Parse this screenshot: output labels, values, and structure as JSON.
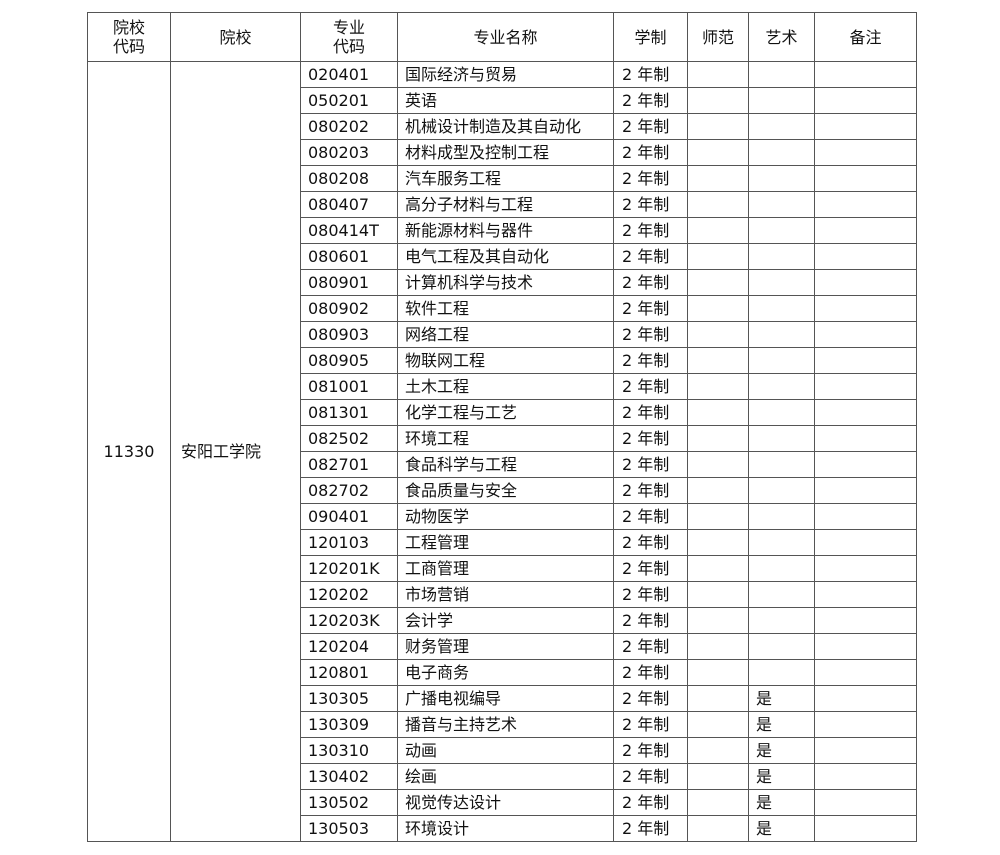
{
  "headers": [
    "院校\n代码",
    "院校",
    "专业\n代码",
    "专业名称",
    "学制",
    "师范",
    "艺术",
    "备注"
  ],
  "school_code": "11330",
  "school_name": "安阳工学院",
  "rows": [
    {
      "code": "020401",
      "name": "国际经济与贸易",
      "duration": "2 年制",
      "normal": "",
      "art": "",
      "note": ""
    },
    {
      "code": "050201",
      "name": "英语",
      "duration": "2 年制",
      "normal": "",
      "art": "",
      "note": ""
    },
    {
      "code": "080202",
      "name": "机械设计制造及其自动化",
      "duration": "2 年制",
      "normal": "",
      "art": "",
      "note": ""
    },
    {
      "code": "080203",
      "name": "材料成型及控制工程",
      "duration": "2 年制",
      "normal": "",
      "art": "",
      "note": ""
    },
    {
      "code": "080208",
      "name": "汽车服务工程",
      "duration": "2 年制",
      "normal": "",
      "art": "",
      "note": ""
    },
    {
      "code": "080407",
      "name": "高分子材料与工程",
      "duration": "2 年制",
      "normal": "",
      "art": "",
      "note": ""
    },
    {
      "code": "080414T",
      "name": "新能源材料与器件",
      "duration": "2 年制",
      "normal": "",
      "art": "",
      "note": ""
    },
    {
      "code": "080601",
      "name": "电气工程及其自动化",
      "duration": "2 年制",
      "normal": "",
      "art": "",
      "note": ""
    },
    {
      "code": "080901",
      "name": "计算机科学与技术",
      "duration": "2 年制",
      "normal": "",
      "art": "",
      "note": ""
    },
    {
      "code": "080902",
      "name": "软件工程",
      "duration": "2 年制",
      "normal": "",
      "art": "",
      "note": ""
    },
    {
      "code": "080903",
      "name": "网络工程",
      "duration": "2 年制",
      "normal": "",
      "art": "",
      "note": ""
    },
    {
      "code": "080905",
      "name": "物联网工程",
      "duration": "2 年制",
      "normal": "",
      "art": "",
      "note": ""
    },
    {
      "code": "081001",
      "name": "土木工程",
      "duration": "2 年制",
      "normal": "",
      "art": "",
      "note": ""
    },
    {
      "code": "081301",
      "name": "化学工程与工艺",
      "duration": "2 年制",
      "normal": "",
      "art": "",
      "note": ""
    },
    {
      "code": "082502",
      "name": "环境工程",
      "duration": "2 年制",
      "normal": "",
      "art": "",
      "note": ""
    },
    {
      "code": "082701",
      "name": "食品科学与工程",
      "duration": "2 年制",
      "normal": "",
      "art": "",
      "note": ""
    },
    {
      "code": "082702",
      "name": "食品质量与安全",
      "duration": "2 年制",
      "normal": "",
      "art": "",
      "note": ""
    },
    {
      "code": "090401",
      "name": "动物医学",
      "duration": "2 年制",
      "normal": "",
      "art": "",
      "note": ""
    },
    {
      "code": "120103",
      "name": "工程管理",
      "duration": "2 年制",
      "normal": "",
      "art": "",
      "note": ""
    },
    {
      "code": "120201K",
      "name": "工商管理",
      "duration": "2 年制",
      "normal": "",
      "art": "",
      "note": ""
    },
    {
      "code": "120202",
      "name": "市场营销",
      "duration": "2 年制",
      "normal": "",
      "art": "",
      "note": ""
    },
    {
      "code": "120203K",
      "name": "会计学",
      "duration": "2 年制",
      "normal": "",
      "art": "",
      "note": ""
    },
    {
      "code": "120204",
      "name": "财务管理",
      "duration": "2 年制",
      "normal": "",
      "art": "",
      "note": ""
    },
    {
      "code": "120801",
      "name": "电子商务",
      "duration": "2 年制",
      "normal": "",
      "art": "",
      "note": ""
    },
    {
      "code": "130305",
      "name": "广播电视编导",
      "duration": "2 年制",
      "normal": "",
      "art": "是",
      "note": ""
    },
    {
      "code": "130309",
      "name": "播音与主持艺术",
      "duration": "2 年制",
      "normal": "",
      "art": "是",
      "note": ""
    },
    {
      "code": "130310",
      "name": "动画",
      "duration": "2 年制",
      "normal": "",
      "art": "是",
      "note": ""
    },
    {
      "code": "130402",
      "name": "绘画",
      "duration": "2 年制",
      "normal": "",
      "art": "是",
      "note": ""
    },
    {
      "code": "130502",
      "name": "视觉传达设计",
      "duration": "2 年制",
      "normal": "",
      "art": "是",
      "note": ""
    },
    {
      "code": "130503",
      "name": "环境设计",
      "duration": "2 年制",
      "normal": "",
      "art": "是",
      "note": ""
    }
  ]
}
